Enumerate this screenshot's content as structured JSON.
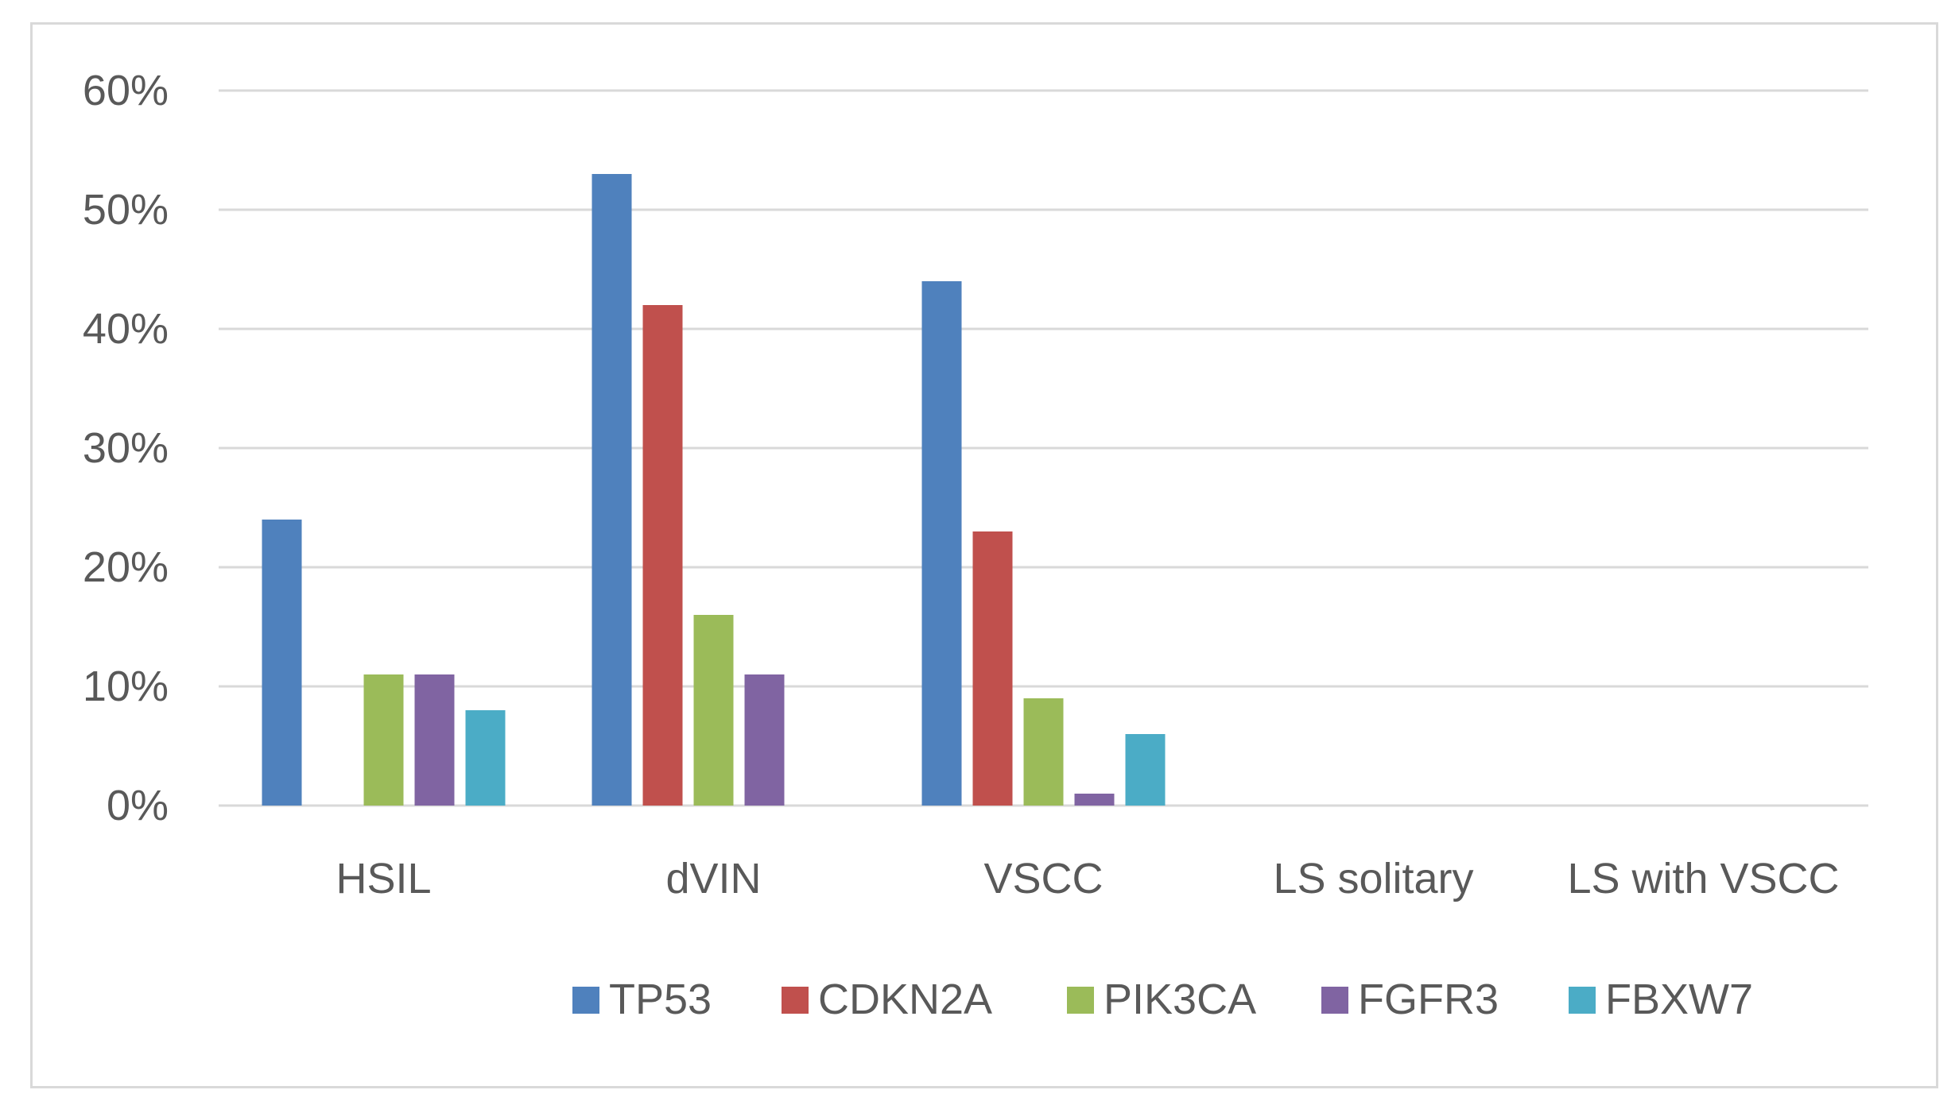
{
  "chart_data": {
    "type": "bar",
    "title": "",
    "xlabel": "",
    "ylabel": "",
    "ylim": [
      0,
      60
    ],
    "y_ticks": [
      "0%",
      "10%",
      "20%",
      "30%",
      "40%",
      "50%",
      "60%"
    ],
    "y_tick_values": [
      0,
      10,
      20,
      30,
      40,
      50,
      60
    ],
    "grid": true,
    "legend_position": "bottom",
    "categories": [
      "HSIL",
      "dVIN",
      "VSCC",
      "LS solitary",
      "LS with VSCC"
    ],
    "series": [
      {
        "name": "TP53",
        "color": "#4f81bd",
        "values": [
          24,
          53,
          44,
          0,
          0
        ]
      },
      {
        "name": "CDKN2A",
        "color": "#c0504d",
        "values": [
          0,
          42,
          23,
          0,
          0
        ]
      },
      {
        "name": "PIK3CA",
        "color": "#9bbb59",
        "values": [
          11,
          16,
          9,
          0,
          0
        ]
      },
      {
        "name": "FGFR3",
        "color": "#8064a2",
        "values": [
          11,
          11,
          1,
          0,
          0
        ]
      },
      {
        "name": "FBXW7",
        "color": "#4bacc6",
        "values": [
          8,
          0,
          6,
          0,
          0
        ]
      }
    ]
  },
  "colors": {
    "gridline": "#d9d9d9",
    "axis": "#d9d9d9",
    "text": "#595959"
  }
}
